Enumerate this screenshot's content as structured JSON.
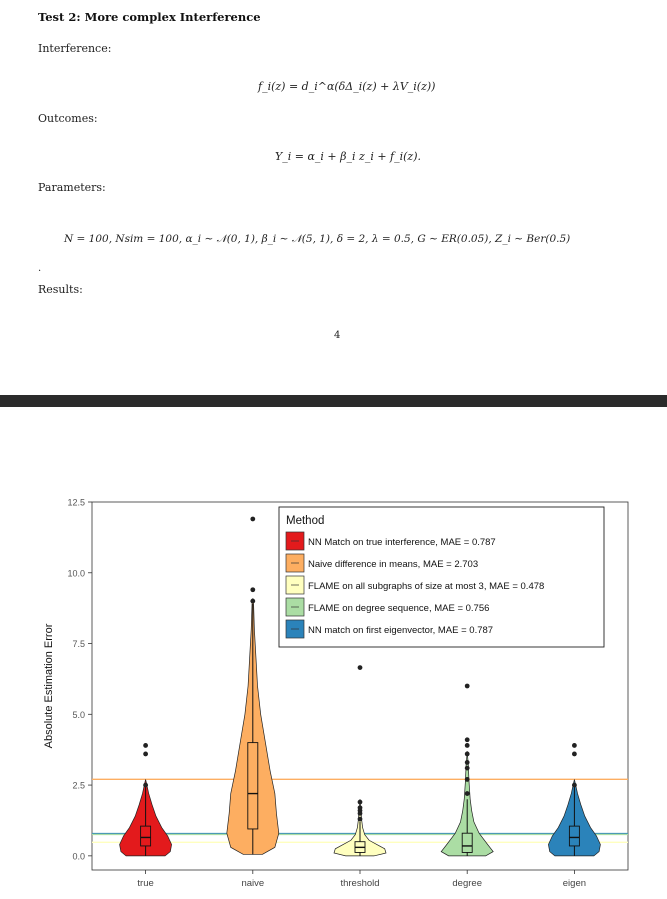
{
  "document": {
    "heading": "Test 2: More complex Interference",
    "interference_label": "Interference:",
    "interference_eq": "f_i(z) = d_i^α(δΔ_i(z) + λV_i(z))",
    "outcomes_label": "Outcomes:",
    "outcomes_eq": "Y_i = α_i + β_i z_i + f_i(z).",
    "parameters_label": "Parameters:",
    "parameters_eq": "N = 100,  Nsim = 100,  α_i ∼ 𝒩(0, 1),  β_i ∼ 𝒩(5, 1),  δ = 2,  λ = 0.5,  G ∼ ER(0.05),  Z_i ∼ Ber(0.5)",
    "dot": ".",
    "results_label": "Results:",
    "page_number": "4"
  },
  "chart_data": {
    "type": "violin",
    "ylabel": "Absolute Estimation Error",
    "xlabel": "",
    "ylim": [
      -0.5,
      12.5
    ],
    "yticks": [
      "0.0",
      "2.5",
      "5.0",
      "7.5",
      "10.0",
      "12.5"
    ],
    "categories": [
      "true",
      "naive",
      "threshold",
      "degree",
      "eigen"
    ],
    "legend": {
      "title": "Method",
      "placement": "top-right",
      "entries": [
        {
          "label": "NN Match on true interference, MAE = 0.787",
          "color": "#e31a1c"
        },
        {
          "label": "Naive difference in means, MAE = 2.703",
          "color": "#fdae61"
        },
        {
          "label": "FLAME on all subgraphs of size at most 3, MAE = 0.478",
          "color": "#ffffbf"
        },
        {
          "label": "FLAME on degree sequence, MAE = 0.756",
          "color": "#abdda4"
        },
        {
          "label": "NN match on first eigenvector, MAE = 0.787",
          "color": "#2b83ba"
        }
      ]
    },
    "hlines": [
      {
        "value": 2.703,
        "color": "#fdae61"
      },
      {
        "value": 0.787,
        "color": "#2b83ba"
      },
      {
        "value": 0.756,
        "color": "#abdda4"
      },
      {
        "value": 0.478,
        "color": "#ffffbf"
      }
    ],
    "series": [
      {
        "category": "true",
        "color": "#e31a1c",
        "min": 0.0,
        "q1": 0.35,
        "median": 0.65,
        "q3": 1.05,
        "max": 2.5,
        "outliers": [
          2.5,
          3.6,
          3.9
        ],
        "density": [
          [
            0,
            0.75
          ],
          [
            0.15,
            0.95
          ],
          [
            0.4,
            1.0
          ],
          [
            0.7,
            0.85
          ],
          [
            1.0,
            0.62
          ],
          [
            1.4,
            0.4
          ],
          [
            1.8,
            0.25
          ],
          [
            2.2,
            0.12
          ],
          [
            2.5,
            0.05
          ],
          [
            2.7,
            0.0
          ]
        ]
      },
      {
        "category": "naive",
        "color": "#fdae61",
        "min": 0.05,
        "q1": 0.95,
        "median": 2.2,
        "q3": 4.0,
        "max": 8.9,
        "outliers": [
          9.0,
          9.4,
          11.9
        ],
        "density": [
          [
            0.05,
            0.12
          ],
          [
            0.3,
            0.28
          ],
          [
            0.8,
            0.33
          ],
          [
            1.5,
            0.3
          ],
          [
            2.2,
            0.28
          ],
          [
            3.0,
            0.22
          ],
          [
            4.0,
            0.16
          ],
          [
            5.0,
            0.1
          ],
          [
            6.0,
            0.06
          ],
          [
            7.0,
            0.04
          ],
          [
            8.0,
            0.02
          ],
          [
            8.9,
            0.01
          ],
          [
            9.1,
            0.0
          ]
        ]
      },
      {
        "category": "threshold",
        "color": "#ffffbf",
        "min": 0.0,
        "q1": 0.12,
        "median": 0.3,
        "q3": 0.5,
        "max": 1.2,
        "outliers": [
          1.3,
          1.5,
          1.6,
          1.7,
          1.9,
          6.65
        ],
        "density": [
          [
            0,
            0.55
          ],
          [
            0.1,
            1.0
          ],
          [
            0.25,
            0.95
          ],
          [
            0.4,
            0.65
          ],
          [
            0.55,
            0.35
          ],
          [
            0.75,
            0.18
          ],
          [
            1.0,
            0.1
          ],
          [
            1.3,
            0.06
          ],
          [
            1.6,
            0.04
          ],
          [
            2.0,
            0.0
          ]
        ]
      },
      {
        "category": "degree",
        "color": "#abdda4",
        "min": 0.0,
        "q1": 0.12,
        "median": 0.35,
        "q3": 0.8,
        "max": 2.0,
        "outliers": [
          2.2,
          2.7,
          3.1,
          3.3,
          3.6,
          3.9,
          4.1,
          6.0
        ],
        "density": [
          [
            0,
            0.5
          ],
          [
            0.15,
            0.7
          ],
          [
            0.4,
            0.55
          ],
          [
            0.8,
            0.32
          ],
          [
            1.2,
            0.18
          ],
          [
            1.6,
            0.12
          ],
          [
            2.0,
            0.08
          ],
          [
            2.6,
            0.05
          ],
          [
            3.2,
            0.03
          ],
          [
            3.7,
            0.0
          ]
        ]
      },
      {
        "category": "eigen",
        "color": "#2b83ba",
        "min": 0.0,
        "q1": 0.35,
        "median": 0.65,
        "q3": 1.05,
        "max": 2.5,
        "outliers": [
          2.5,
          3.6,
          3.9
        ],
        "density": [
          [
            0,
            0.75
          ],
          [
            0.15,
            0.95
          ],
          [
            0.4,
            1.0
          ],
          [
            0.7,
            0.85
          ],
          [
            1.0,
            0.62
          ],
          [
            1.4,
            0.4
          ],
          [
            1.8,
            0.25
          ],
          [
            2.2,
            0.12
          ],
          [
            2.5,
            0.05
          ],
          [
            2.7,
            0.0
          ]
        ]
      }
    ]
  }
}
